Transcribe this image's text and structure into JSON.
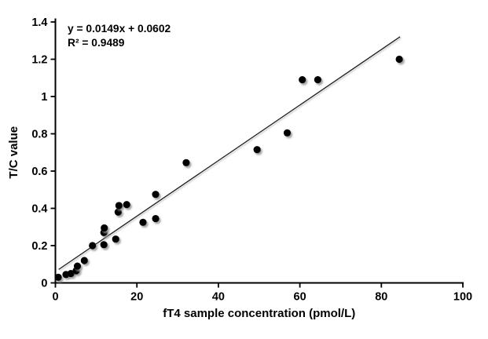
{
  "chart_data": {
    "type": "scatter",
    "title": "",
    "xlabel": "fT4 sample concentration (pmol/L)",
    "ylabel": "T/C value",
    "xlim": [
      0,
      100
    ],
    "ylim": [
      0,
      1.4
    ],
    "grid": false,
    "legend_position": "none",
    "background_color": "#ffffff",
    "marker_color": "#000000",
    "trendline_color": "#1a1a1a",
    "axis_color": "#000000",
    "xticks": [
      {
        "v": 0,
        "label": "0"
      },
      {
        "v": 20,
        "label": "20"
      },
      {
        "v": 40,
        "label": "40"
      },
      {
        "v": 60,
        "label": "60"
      },
      {
        "v": 80,
        "label": "80"
      },
      {
        "v": 100,
        "label": "100"
      }
    ],
    "yticks": [
      {
        "v": 0.0,
        "label": "0"
      },
      {
        "v": 0.2,
        "label": "0.2"
      },
      {
        "v": 0.4,
        "label": "0.4"
      },
      {
        "v": 0.6,
        "label": "0.6"
      },
      {
        "v": 0.8,
        "label": "0.8"
      },
      {
        "v": 1.0,
        "label": "1"
      },
      {
        "v": 1.2,
        "label": "1.2"
      },
      {
        "v": 1.4,
        "label": "1.4"
      }
    ],
    "points": [
      [
        0.7,
        0.03
      ],
      [
        2.6,
        0.045
      ],
      [
        3.8,
        0.05
      ],
      [
        5.1,
        0.065
      ],
      [
        5.4,
        0.09
      ],
      [
        7.1,
        0.12
      ],
      [
        9.1,
        0.2
      ],
      [
        11.9,
        0.205
      ],
      [
        11.9,
        0.27
      ],
      [
        12.0,
        0.295
      ],
      [
        14.8,
        0.235
      ],
      [
        15.4,
        0.38
      ],
      [
        15.6,
        0.415
      ],
      [
        17.5,
        0.42
      ],
      [
        21.5,
        0.325
      ],
      [
        24.6,
        0.345
      ],
      [
        24.6,
        0.475
      ],
      [
        32.1,
        0.645
      ],
      [
        49.5,
        0.715
      ],
      [
        56.9,
        0.805
      ],
      [
        60.6,
        1.09
      ],
      [
        64.4,
        1.09
      ],
      [
        84.4,
        1.2
      ]
    ],
    "trendline": {
      "slope": 0.0149,
      "intercept": 0.0602,
      "x_start": 0.8,
      "x_end": 84.6
    },
    "annotation": {
      "equation": "y = 0.0149x + 0.0602",
      "r_squared": "R² = 0.9489"
    }
  }
}
